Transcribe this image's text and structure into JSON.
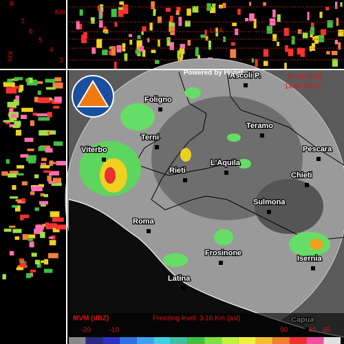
{
  "header": {
    "heights": [
      "8",
      "7",
      "6",
      "5",
      "4",
      "3"
    ],
    "km_top": "Km",
    "km_side": "Km",
    "lca": "LCA"
  },
  "map": {
    "credit": "Powered by Himet",
    "date": "11 Jul 2015",
    "time": "14:00 CEST",
    "cities": [
      "Foligno",
      "Ascoli P.",
      "Terni",
      "Teramo",
      "Viterbo",
      "Pescara",
      "Rieti",
      "L'Aquila",
      "Chieti",
      "Sulmona",
      "Roma",
      "Frosinone",
      "Isernia",
      "Latina",
      "Capua"
    ]
  },
  "legend": {
    "title": "MVM (dBZ)",
    "freezing": "Freezing level: 3.16 Km (asl)",
    "ticks": [
      -20,
      -10,
      50,
      60,
      65
    ],
    "range": [
      -26,
      70
    ]
  }
}
